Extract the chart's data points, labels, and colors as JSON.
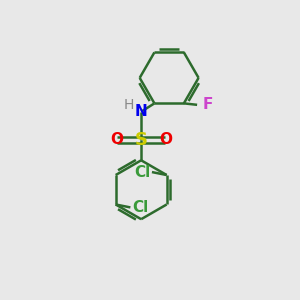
{
  "background_color": "#e8e8e8",
  "bond_color": "#2d6b2d",
  "S_color": "#cccc00",
  "N_color": "#0000ee",
  "O_color": "#ee0000",
  "Cl_color": "#3a9a3a",
  "F_color": "#cc44cc",
  "H_color": "#888888",
  "bond_lw": 1.8,
  "figsize": [
    3.0,
    3.0
  ],
  "dpi": 100,
  "xlim": [
    0,
    10
  ],
  "ylim": [
    0,
    10
  ]
}
